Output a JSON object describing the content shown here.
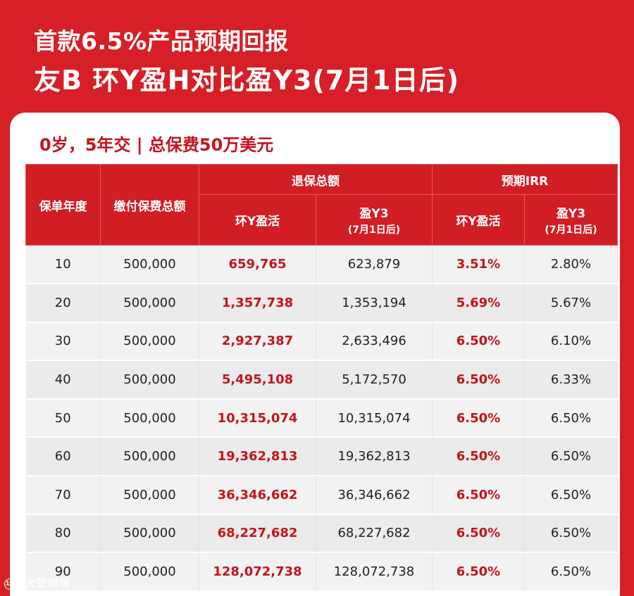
{
  "header": {
    "line1": "首款6.5%产品预期回报",
    "line2": "友B  环Y盈H对比盈Y3(7月1日后)"
  },
  "subtitle": "0岁，5年交 | 总保费50万美元",
  "table": {
    "col_year": "保单年度",
    "col_premium": "缴付保费总额",
    "group_surrender": "退保总额",
    "group_irr": "预期IRR",
    "sub_a": "环Y盈活",
    "sub_b": "盈Y3",
    "sub_b_note": "(7月1日后)",
    "rows": [
      {
        "year": "10",
        "premium": "500,000",
        "sur_a": "659,765",
        "sur_b": "623,879",
        "irr_a": "3.51%",
        "irr_b": "2.80%"
      },
      {
        "year": "20",
        "premium": "500,000",
        "sur_a": "1,357,738",
        "sur_b": "1,353,194",
        "irr_a": "5.69%",
        "irr_b": "5.67%"
      },
      {
        "year": "30",
        "premium": "500,000",
        "sur_a": "2,927,387",
        "sur_b": "2,633,496",
        "irr_a": "6.50%",
        "irr_b": "6.10%"
      },
      {
        "year": "40",
        "premium": "500,000",
        "sur_a": "5,495,108",
        "sur_b": "5,172,570",
        "irr_a": "6.50%",
        "irr_b": "6.33%"
      },
      {
        "year": "50",
        "premium": "500,000",
        "sur_a": "10,315,074",
        "sur_b": "10,315,074",
        "irr_a": "6.50%",
        "irr_b": "6.50%"
      },
      {
        "year": "60",
        "premium": "500,000",
        "sur_a": "19,362,813",
        "sur_b": "19,362,813",
        "irr_a": "6.50%",
        "irr_b": "6.50%"
      },
      {
        "year": "70",
        "premium": "500,000",
        "sur_a": "36,346,662",
        "sur_b": "36,346,662",
        "irr_a": "6.50%",
        "irr_b": "6.50%"
      },
      {
        "year": "80",
        "premium": "500,000",
        "sur_a": "68,227,682",
        "sur_b": "68,227,682",
        "irr_a": "6.50%",
        "irr_b": "6.50%"
      },
      {
        "year": "90",
        "premium": "500,000",
        "sur_a": "128,072,738",
        "sur_b": "128,072,738",
        "irr_a": "6.50%",
        "irr_b": "6.50%"
      }
    ]
  },
  "watermark": {
    "logo": "100",
    "text": "大数跨境"
  },
  "colors": {
    "brand_red": "#d61f26",
    "header_red": "#d11e24",
    "highlight_text": "#c1151d"
  }
}
